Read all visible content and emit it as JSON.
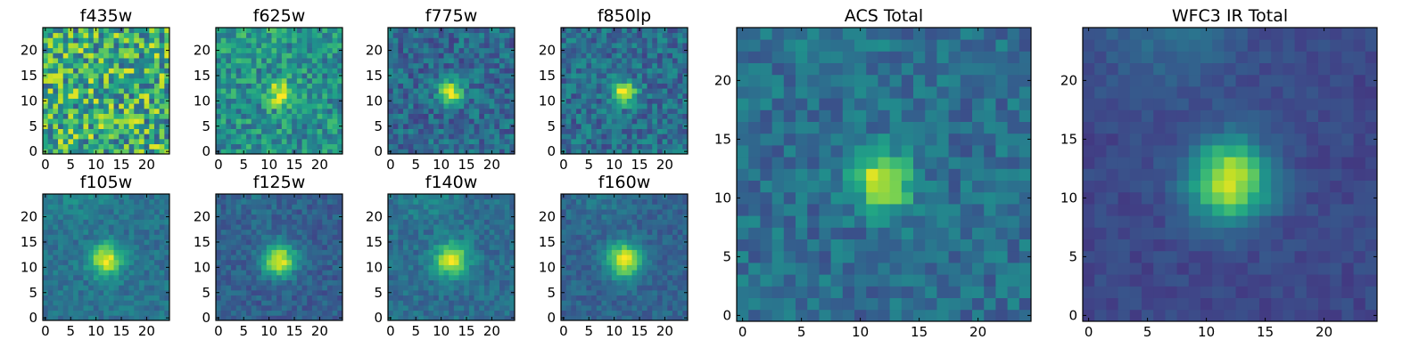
{
  "chart_data": {
    "type": "heatmap",
    "colormap": "viridis",
    "grid_size": 25,
    "panels": [
      {
        "title": "f435w",
        "xticks": [
          0,
          5,
          10,
          15,
          20
        ],
        "yticks": [
          0,
          5,
          10,
          15,
          20
        ],
        "source": {
          "peak": 0.05,
          "sigma": 2.0,
          "noise": 0.34,
          "base": 0.62,
          "bright_bias": 0.0
        }
      },
      {
        "title": "f625w",
        "xticks": [
          0,
          5,
          10,
          15,
          20
        ],
        "yticks": [
          0,
          5,
          10,
          15,
          20
        ],
        "source": {
          "peak": 0.42,
          "sigma": 1.8,
          "noise": 0.2,
          "base": 0.5,
          "bright_bias": 0.08
        }
      },
      {
        "title": "f775w",
        "xticks": [
          0,
          5,
          10,
          15,
          20
        ],
        "yticks": [
          0,
          5,
          10,
          15,
          20
        ],
        "source": {
          "peak": 0.66,
          "sigma": 1.6,
          "noise": 0.16,
          "base": 0.34,
          "bright_bias": 0.0
        }
      },
      {
        "title": "f850lp",
        "xticks": [
          0,
          5,
          10,
          15,
          20
        ],
        "yticks": [
          0,
          5,
          10,
          15,
          20
        ],
        "source": {
          "peak": 0.66,
          "sigma": 1.6,
          "noise": 0.16,
          "base": 0.36,
          "bright_bias": 0.0
        }
      },
      {
        "title": "f105w",
        "xticks": [
          0,
          5,
          10,
          15,
          20
        ],
        "yticks": [
          0,
          5,
          10,
          15,
          20
        ],
        "source": {
          "peak": 0.62,
          "sigma": 2.2,
          "noise": 0.09,
          "base": 0.38,
          "bright_bias": 0.08
        }
      },
      {
        "title": "f125w",
        "xticks": [
          0,
          5,
          10,
          15,
          20
        ],
        "yticks": [
          0,
          5,
          10,
          15,
          20
        ],
        "source": {
          "peak": 0.66,
          "sigma": 2.3,
          "noise": 0.09,
          "base": 0.3,
          "bright_bias": 0.06
        }
      },
      {
        "title": "f140w",
        "xticks": [
          0,
          5,
          10,
          15,
          20
        ],
        "yticks": [
          0,
          5,
          10,
          15,
          20
        ],
        "source": {
          "peak": 0.62,
          "sigma": 2.3,
          "noise": 0.09,
          "base": 0.36,
          "bright_bias": 0.1
        }
      },
      {
        "title": "f160w",
        "xticks": [
          0,
          5,
          10,
          15,
          20
        ],
        "yticks": [
          0,
          5,
          10,
          15,
          20
        ],
        "source": {
          "peak": 0.66,
          "sigma": 2.4,
          "noise": 0.08,
          "base": 0.32,
          "bright_bias": 0.08
        }
      },
      {
        "title": "ACS Total",
        "xticks": [
          0,
          5,
          10,
          15,
          20
        ],
        "yticks": [
          0,
          5,
          10,
          15,
          20
        ],
        "source": {
          "peak": 0.62,
          "sigma": 1.7,
          "noise": 0.12,
          "base": 0.36,
          "bright_bias": 0.04
        }
      },
      {
        "title": "WFC3 IR Total",
        "xticks": [
          0,
          5,
          10,
          15,
          20
        ],
        "yticks": [
          0,
          5,
          10,
          15,
          20
        ],
        "source": {
          "peak": 0.72,
          "sigma": 2.4,
          "noise": 0.05,
          "base": 0.22,
          "bright_bias": 0.14
        }
      }
    ]
  }
}
